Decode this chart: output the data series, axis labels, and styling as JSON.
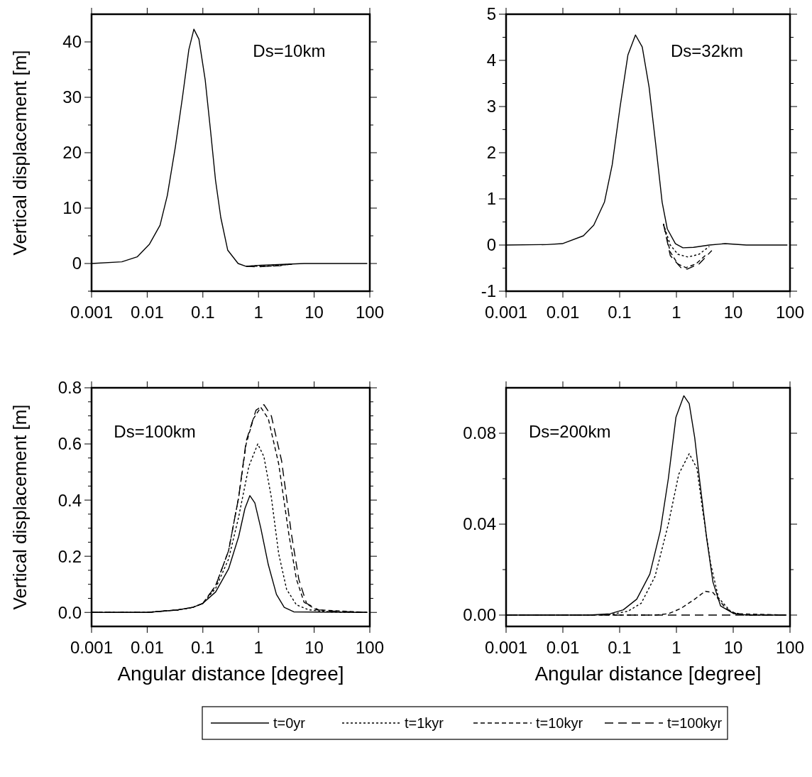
{
  "chart_data": [
    {
      "type": "line",
      "log": "x",
      "ylabel": "Vertical displacement [m]",
      "annotations": [
        "Ds=10km"
      ],
      "legend": "bottom",
      "xlim": [
        0.001,
        100
      ],
      "xticks": [
        0.001,
        0.01,
        0.1,
        1,
        10,
        100
      ],
      "ylim": [
        -5,
        45
      ],
      "yticks": [
        {
          "value": -5,
          "label": null
        },
        0,
        {
          "value": 5,
          "label": null
        },
        10,
        {
          "value": 15,
          "label": null
        },
        20,
        {
          "value": 25,
          "label": null
        },
        30,
        {
          "value": 35,
          "label": null
        },
        40
      ],
      "series": [
        {
          "name": "t=0yr",
          "color": "#000000",
          "line_style": "solid",
          "x": [
            0.001,
            0.0035,
            0.0066,
            0.011,
            0.017,
            0.023,
            0.032,
            0.043,
            0.056,
            0.069,
            0.085,
            0.11,
            0.137,
            0.169,
            0.21,
            0.28,
            0.43,
            0.59,
            1.1,
            2.3,
            6.6,
            90
          ],
          "values": [
            0,
            0.3,
            1.2,
            3.5,
            6.9,
            12.3,
            21,
            30,
            38.6,
            42.3,
            40.5,
            33.2,
            24.1,
            15,
            8.3,
            2.4,
            0,
            -0.5,
            -0.3,
            -0.2,
            0,
            0
          ]
        },
        {
          "name": "t=1kyr",
          "color": "#000000",
          "line_style": "dotted",
          "x": [
            0.6,
            1,
            1.5,
            2.5,
            4
          ],
          "values": [
            -0.5,
            -0.4,
            -0.4,
            -0.3,
            -0.1
          ]
        },
        {
          "name": "t=10kyr",
          "color": "#000000",
          "line_style": "dashed",
          "x": [
            0.6,
            1,
            1.5,
            2.5,
            4
          ],
          "values": [
            -0.5,
            -0.5,
            -0.5,
            -0.3,
            -0.1
          ]
        },
        {
          "name": "t=100kyr",
          "color": "#000000",
          "line_style": "dashed",
          "x": [
            0.6,
            1,
            1.5,
            2.5,
            4
          ],
          "values": [
            -0.5,
            -0.6,
            -0.5,
            -0.4,
            -0.1
          ]
        }
      ]
    },
    {
      "type": "line",
      "log": "x",
      "annotations": [
        "Ds=32km"
      ],
      "xlim": [
        0.001,
        100
      ],
      "xticks": [
        0.001,
        0.01,
        0.1,
        1,
        10,
        100
      ],
      "ylim": [
        -1,
        5
      ],
      "yticks": [
        -1,
        {
          "value": -0.5,
          "label": null
        },
        0,
        {
          "value": 0.5,
          "label": null
        },
        1,
        {
          "value": 1.5,
          "label": null
        },
        2,
        {
          "value": 2.5,
          "label": null
        },
        3,
        {
          "value": 3.5,
          "label": null
        },
        4,
        {
          "value": 4.5,
          "label": null
        },
        5
      ],
      "series": [
        {
          "color": "#000000",
          "line_style": "solid",
          "x": [
            0.001,
            0.0052,
            0.0098,
            0.023,
            0.035,
            0.054,
            0.074,
            0.102,
            0.14,
            0.19,
            0.25,
            0.33,
            0.43,
            0.56,
            0.69,
            0.96,
            1.3,
            2.0,
            3.8,
            7.2,
            17,
            90
          ],
          "values": [
            0,
            0.01,
            0.03,
            0.2,
            0.43,
            0.93,
            1.74,
            3.0,
            4.12,
            4.55,
            4.29,
            3.42,
            2.2,
            0.93,
            0.35,
            0.03,
            -0.06,
            -0.05,
            0,
            0.03,
            0,
            0
          ]
        },
        {
          "color": "#000000",
          "line_style": "dotted",
          "x": [
            0.59,
            0.78,
            1.06,
            1.6,
            2.5,
            3.8
          ],
          "values": [
            0.46,
            0,
            -0.2,
            -0.26,
            -0.2,
            -0.03
          ]
        },
        {
          "color": "#000000",
          "line_style": "dashed",
          "x": [
            0.59,
            0.78,
            1.06,
            1.47,
            2.2,
            3.4
          ],
          "values": [
            0.46,
            -0.15,
            -0.41,
            -0.49,
            -0.41,
            -0.2
          ]
        },
        {
          "color": "#000000",
          "line_style": "dashed",
          "x": [
            0.59,
            0.78,
            1.2,
            1.55,
            2.5,
            4.2
          ],
          "values": [
            0.46,
            -0.23,
            -0.49,
            -0.52,
            -0.41,
            -0.12
          ]
        }
      ]
    },
    {
      "type": "line",
      "log": "x",
      "ylabel": "Vertical displacement [m]",
      "xlabel": "Angular distance [degree]",
      "annotations": [
        "Ds=100km"
      ],
      "xlim": [
        0.001,
        100
      ],
      "xticks": [
        0.001,
        0.01,
        0.1,
        1,
        10,
        100
      ],
      "ylim": [
        -0.05,
        0.8
      ],
      "yticks": [
        {
          "value": 0,
          "label": "0.0"
        },
        {
          "value": 0.05,
          "label": null
        },
        {
          "value": 0.1,
          "label": null
        },
        {
          "value": 0.15,
          "label": null
        },
        0.2,
        {
          "value": 0.25,
          "label": null
        },
        {
          "value": 0.3,
          "label": null
        },
        {
          "value": 0.35,
          "label": null
        },
        0.4,
        {
          "value": 0.45,
          "label": null
        },
        {
          "value": 0.5,
          "label": null
        },
        {
          "value": 0.55,
          "label": null
        },
        0.6,
        {
          "value": 0.65,
          "label": null
        },
        {
          "value": 0.7,
          "label": null
        },
        {
          "value": 0.75,
          "label": null
        },
        0.8
      ],
      "series": [
        {
          "color": "#000000",
          "line_style": "solid",
          "x": [
            0.001,
            0.01,
            0.036,
            0.066,
            0.1,
            0.17,
            0.29,
            0.44,
            0.57,
            0.7,
            0.86,
            1.1,
            1.5,
            2.1,
            2.9,
            4.3,
            90
          ],
          "values": [
            0,
            0,
            0.009,
            0.018,
            0.032,
            0.073,
            0.155,
            0.27,
            0.37,
            0.416,
            0.39,
            0.3,
            0.17,
            0.064,
            0.018,
            0.002,
            0
          ]
        },
        {
          "color": "#000000",
          "line_style": "dotted",
          "x": [
            0.001,
            0.01,
            0.036,
            0.066,
            0.1,
            0.17,
            0.29,
            0.44,
            0.67,
            0.97,
            1.25,
            1.7,
            2.3,
            3.2,
            4.8,
            8,
            19,
            90
          ],
          "values": [
            0,
            0,
            0.009,
            0.018,
            0.032,
            0.086,
            0.19,
            0.34,
            0.52,
            0.6,
            0.555,
            0.41,
            0.21,
            0.082,
            0.027,
            0.009,
            0.002,
            0
          ]
        },
        {
          "color": "#000000",
          "line_style": "dashed",
          "x": [
            0.001,
            0.01,
            0.036,
            0.066,
            0.1,
            0.17,
            0.29,
            0.44,
            0.6,
            0.81,
            1.1,
            1.5,
            2.3,
            3.5,
            4.8,
            6.6,
            11,
            90
          ],
          "values": [
            0,
            0,
            0.009,
            0.018,
            0.032,
            0.095,
            0.22,
            0.41,
            0.6,
            0.69,
            0.73,
            0.69,
            0.53,
            0.28,
            0.118,
            0.036,
            0.009,
            0
          ]
        },
        {
          "color": "#000000",
          "line_style": "dashed",
          "x": [
            0.001,
            0.01,
            0.036,
            0.066,
            0.1,
            0.17,
            0.29,
            0.44,
            0.6,
            0.9,
            1.25,
            1.7,
            2.6,
            3.9,
            5.3,
            7.3,
            12,
            19,
            90
          ],
          "values": [
            0,
            0,
            0.009,
            0.018,
            0.032,
            0.095,
            0.22,
            0.41,
            0.61,
            0.72,
            0.74,
            0.7,
            0.54,
            0.28,
            0.118,
            0.032,
            0.009,
            0.005,
            0
          ]
        }
      ]
    },
    {
      "type": "line",
      "log": "x",
      "xlabel": "Angular distance [degree]",
      "annotations": [
        "Ds=200km"
      ],
      "xlim": [
        0.001,
        100
      ],
      "xticks": [
        0.001,
        0.01,
        0.1,
        1,
        10,
        100
      ],
      "ylim": [
        -0.005,
        0.1
      ],
      "yticks": [
        {
          "value": 0,
          "label": "0.00"
        },
        {
          "value": 0.02,
          "label": null
        },
        {
          "value": 0.04,
          "label": "0.04"
        },
        {
          "value": 0.06,
          "label": null
        },
        {
          "value": 0.08,
          "label": "0.08"
        }
      ],
      "series": [
        {
          "color": "#000000",
          "line_style": "solid",
          "x": [
            0.001,
            0.029,
            0.068,
            0.116,
            0.2,
            0.34,
            0.52,
            0.72,
            0.98,
            1.35,
            1.68,
            2.1,
            2.6,
            3.4,
            4.4,
            6,
            10.3,
            17.6,
            87
          ],
          "values": [
            0,
            0,
            0.0006,
            0.0023,
            0.007,
            0.018,
            0.037,
            0.06,
            0.087,
            0.0965,
            0.093,
            0.078,
            0.058,
            0.034,
            0.0145,
            0.004,
            0.0006,
            0,
            0
          ]
        },
        {
          "color": "#000000",
          "line_style": "dotted",
          "x": [
            0.001,
            0.029,
            0.068,
            0.14,
            0.24,
            0.42,
            0.72,
            1.1,
            1.68,
            2.3,
            2.9,
            4.0,
            5.5,
            9.3,
            17.6,
            87
          ],
          "values": [
            0,
            0,
            0.0002,
            0.0017,
            0.0052,
            0.017,
            0.04,
            0.062,
            0.071,
            0.0645,
            0.046,
            0.0227,
            0.0076,
            0.0012,
            0,
            0
          ]
        },
        {
          "color": "#000000",
          "line_style": "dashed",
          "x": [
            0.001,
            0.42,
            0.72,
            1.2,
            2.1,
            3.2,
            4.4,
            5.5,
            7.4,
            11.3,
            87
          ],
          "values": [
            0,
            0,
            0.0006,
            0.0029,
            0.007,
            0.0105,
            0.0099,
            0.007,
            0.0029,
            0.0006,
            0
          ]
        },
        {
          "color": "#000000",
          "line_style": "dashed",
          "x": [
            0.001,
            87
          ],
          "values": [
            0,
            0
          ]
        }
      ]
    }
  ]
}
